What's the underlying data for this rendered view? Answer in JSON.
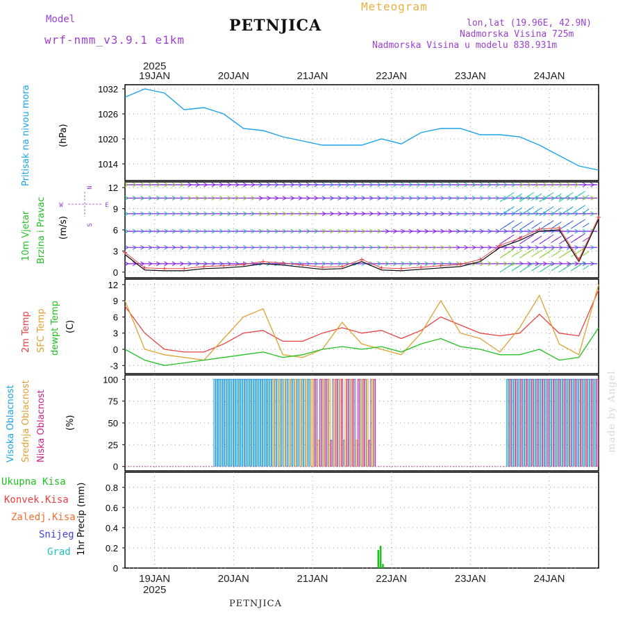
{
  "header": {
    "model_label": "Model",
    "model_name": "wrf-nmm_v3.9.1 e1km",
    "station": "PETNJICA",
    "title": "Meteogram",
    "lonlat": "lon,lat (19.96E, 42.9N)",
    "elevation": "Nadmorska Visina 725m",
    "model_elevation": "Nadmorska Visina u modelu 838.931m"
  },
  "footer_station": "PETNJICA",
  "watermark": "made by Angel",
  "time_axis": {
    "year": "2025",
    "days": [
      "19JAN",
      "20JAN",
      "21JAN",
      "22JAN",
      "23JAN",
      "24JAN"
    ]
  },
  "panels": {
    "pressure": {
      "label": "Pritisak na nivou mora",
      "unit": "(hPa)"
    },
    "wind": {
      "label_line1": "10m Vjetar",
      "label_line2": "Brzina i Pravac",
      "unit": "(m/s)",
      "compass": {
        "n": "N",
        "s": "S",
        "w": "W",
        "e": "E"
      }
    },
    "temp": {
      "label_2m": "2m Temp",
      "label_sfc": "SFC Temp",
      "label_dew": "dewpt Temp",
      "unit": "(C)"
    },
    "cloud": {
      "label_high": "Visoka Oblacnost",
      "label_mid": "Srednja Oblacnost",
      "label_low": "Niska Oblacnost",
      "unit": "(%)"
    },
    "precip": {
      "unit_label": "1hr Precip (mm)",
      "legend": [
        "Ukupna Kisa",
        "Konvek.Kisa",
        "Zaledj.Kisa",
        "Snijeg",
        "Grad"
      ]
    }
  },
  "colors": {
    "pressure": "#1aa3e8",
    "temp_2m": "#e84040",
    "temp_sfc": "#e0a030",
    "temp_dew": "#20c020",
    "cloud_high": "#1aa3e8",
    "cloud_mid": "#e0a030",
    "cloud_low": "#d0208a",
    "precip_total": "#20c020",
    "precip_conv": "#e84040",
    "precip_frz": "#f07030",
    "precip_snow": "#4040e0",
    "precip_hail": "#20c0c0",
    "header_purple": "#9b3fd0",
    "title_orange": "#e8b040"
  },
  "chart_data": [
    {
      "type": "line",
      "name": "pressure",
      "x_hours": [
        0,
        6,
        12,
        18,
        24,
        30,
        36,
        42,
        48,
        54,
        60,
        66,
        72,
        78,
        84,
        90,
        96,
        102,
        108,
        114,
        120,
        126,
        132,
        138,
        144
      ],
      "values": [
        1030,
        1032,
        1031,
        1027,
        1027.5,
        1026,
        1022.5,
        1022,
        1020.5,
        1019.5,
        1018.5,
        1018.5,
        1018.5,
        1020,
        1018.8,
        1021.5,
        1022.5,
        1022.5,
        1021,
        1021,
        1020.5,
        1018.5,
        1016,
        1013.5,
        1012.5
      ],
      "ylim": [
        1010,
        1033
      ],
      "yticks": [
        1014,
        1020,
        1026,
        1032
      ]
    },
    {
      "type": "line",
      "name": "wind_speed",
      "x_hours": [
        0,
        6,
        12,
        18,
        24,
        30,
        36,
        42,
        48,
        54,
        60,
        66,
        72,
        78,
        84,
        90,
        96,
        102,
        108,
        114,
        120,
        126,
        132,
        138,
        144
      ],
      "values": [
        2.5,
        0.3,
        0.2,
        0.2,
        0.5,
        0.6,
        0.8,
        1.2,
        1.0,
        0.7,
        0.4,
        0.5,
        1.5,
        0.3,
        0.2,
        0.4,
        0.6,
        0.8,
        1.5,
        3.5,
        4.5,
        5.8,
        6.0,
        1.5,
        7.5
      ],
      "ylim": [
        -0.8,
        12.8
      ],
      "yticks": [
        0,
        3,
        6,
        9,
        12
      ]
    },
    {
      "type": "line",
      "series_names": [
        "2m Temp",
        "SFC Temp",
        "dewpt Temp"
      ],
      "x_hours": [
        0,
        6,
        12,
        18,
        24,
        30,
        36,
        42,
        48,
        54,
        60,
        66,
        72,
        78,
        84,
        90,
        96,
        102,
        108,
        114,
        120,
        126,
        132,
        138,
        144
      ],
      "series": [
        {
          "name": "2m Temp",
          "values": [
            8,
            3,
            0,
            -0.5,
            -0.5,
            1,
            3,
            3.5,
            1.5,
            1.5,
            3,
            4,
            3,
            3.5,
            2,
            3.5,
            6,
            4.5,
            3,
            2.5,
            3,
            6.5,
            3,
            2.5,
            11
          ]
        },
        {
          "name": "SFC Temp",
          "values": [
            9,
            0,
            -1,
            -1.5,
            -2,
            2,
            6,
            7.5,
            -1,
            -1.5,
            0,
            5,
            1,
            0,
            -1,
            3,
            9,
            3,
            2,
            -0.5,
            4,
            10,
            1,
            -1,
            12
          ]
        },
        {
          "name": "dewpt Temp",
          "values": [
            0,
            -2,
            -3,
            -2.5,
            -2,
            -1.5,
            -1,
            -0.5,
            -1.5,
            -1,
            0,
            0.5,
            0,
            0.5,
            -0.5,
            1,
            2,
            0.5,
            0,
            -1,
            -1,
            0,
            -2,
            -1.5,
            4
          ]
        }
      ],
      "ylim": [
        -4.5,
        13
      ],
      "yticks": [
        -3,
        0,
        3,
        6,
        9,
        12
      ]
    },
    {
      "type": "bar",
      "name": "cloud_cover",
      "ylim": [
        -5,
        105
      ],
      "yticks": [
        0,
        25,
        50,
        75,
        100
      ],
      "note_ranges_hours": [
        [
          27,
          45
        ],
        [
          45,
          57
        ],
        [
          57,
          76
        ],
        [
          116,
          144
        ]
      ]
    },
    {
      "type": "bar",
      "name": "precip_1hr",
      "x_hours": [
        77,
        77.7,
        78.4
      ],
      "values": [
        0.18,
        0.22,
        0.04
      ],
      "ylim": [
        0,
        0.95
      ],
      "yticks": [
        0,
        0.2,
        0.4,
        0.6,
        0.8
      ]
    }
  ]
}
